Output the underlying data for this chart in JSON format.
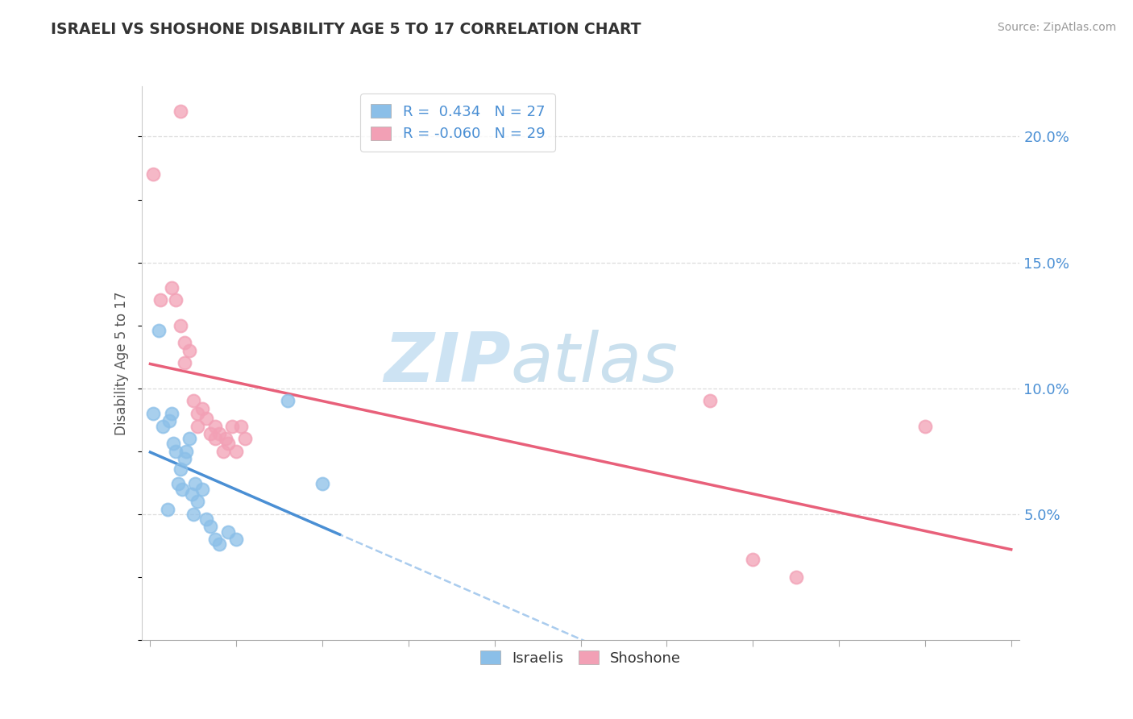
{
  "title": "ISRAELI VS SHOSHONE DISABILITY AGE 5 TO 17 CORRELATION CHART",
  "source": "Source: ZipAtlas.com",
  "ylabel": "Disability Age 5 to 17",
  "legend_israeli_R": "0.434",
  "legend_israeli_N": "27",
  "legend_shoshone_R": "-0.060",
  "legend_shoshone_N": "29",
  "israeli_color": "#8BBFE8",
  "shoshone_color": "#F2A0B5",
  "israeli_line_color": "#4A8FD4",
  "shoshone_line_color": "#E8607A",
  "background_color": "#FFFFFF",
  "watermark_zip": "ZIP",
  "watermark_atlas": "atlas",
  "israeli_points": [
    [
      0.3,
      9.0
    ],
    [
      1.0,
      12.3
    ],
    [
      1.5,
      8.5
    ],
    [
      2.0,
      5.2
    ],
    [
      2.2,
      8.7
    ],
    [
      2.5,
      9.0
    ],
    [
      2.7,
      7.8
    ],
    [
      3.0,
      7.5
    ],
    [
      3.2,
      6.2
    ],
    [
      3.5,
      6.8
    ],
    [
      3.7,
      6.0
    ],
    [
      4.0,
      7.2
    ],
    [
      4.2,
      7.5
    ],
    [
      4.5,
      8.0
    ],
    [
      4.8,
      5.8
    ],
    [
      5.0,
      5.0
    ],
    [
      5.2,
      6.2
    ],
    [
      5.5,
      5.5
    ],
    [
      6.0,
      6.0
    ],
    [
      6.5,
      4.8
    ],
    [
      7.0,
      4.5
    ],
    [
      7.5,
      4.0
    ],
    [
      8.0,
      3.8
    ],
    [
      9.0,
      4.3
    ],
    [
      10.0,
      4.0
    ],
    [
      16.0,
      9.5
    ],
    [
      20.0,
      6.2
    ]
  ],
  "shoshone_points": [
    [
      0.3,
      18.5
    ],
    [
      1.2,
      13.5
    ],
    [
      3.5,
      21.0
    ],
    [
      2.5,
      14.0
    ],
    [
      3.0,
      13.5
    ],
    [
      3.5,
      12.5
    ],
    [
      4.0,
      11.0
    ],
    [
      4.0,
      11.8
    ],
    [
      4.5,
      11.5
    ],
    [
      5.0,
      9.5
    ],
    [
      5.5,
      9.0
    ],
    [
      5.5,
      8.5
    ],
    [
      6.0,
      9.2
    ],
    [
      6.5,
      8.8
    ],
    [
      7.0,
      8.2
    ],
    [
      7.5,
      8.0
    ],
    [
      7.5,
      8.5
    ],
    [
      8.0,
      8.2
    ],
    [
      8.5,
      7.5
    ],
    [
      8.8,
      8.0
    ],
    [
      9.0,
      7.8
    ],
    [
      9.5,
      8.5
    ],
    [
      10.0,
      7.5
    ],
    [
      10.5,
      8.5
    ],
    [
      11.0,
      8.0
    ],
    [
      65.0,
      9.5
    ],
    [
      70.0,
      3.2
    ],
    [
      75.0,
      2.5
    ],
    [
      90.0,
      8.5
    ]
  ]
}
